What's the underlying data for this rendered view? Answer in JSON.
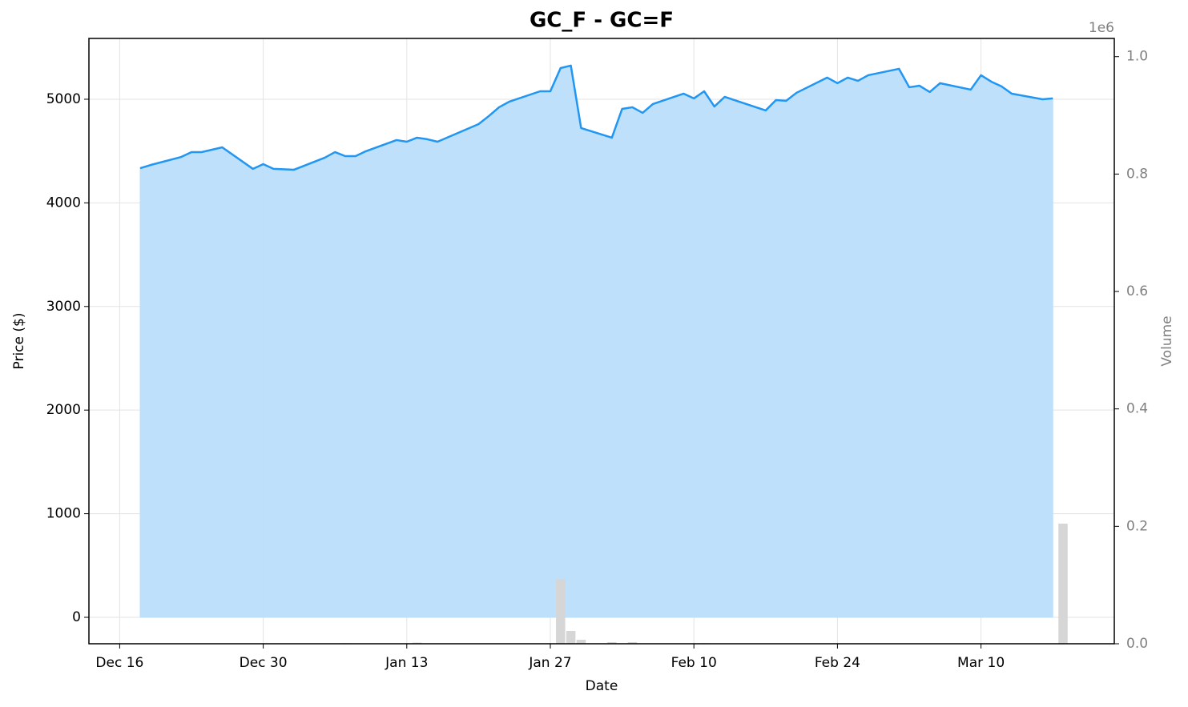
{
  "chart_data": {
    "type": "area",
    "title": "GC_F - GC=F",
    "x_label": "Date",
    "y_label": "Price ($)",
    "y2_label": "Volume",
    "y2_offset_label": "1e6",
    "color": "#2196f3",
    "fill_color": "#bbdefb",
    "grid": true,
    "x": [
      "Dec 18",
      "Dec 19",
      "Dec 22",
      "Dec 23",
      "Dec 24",
      "Dec 26",
      "Dec 29",
      "Dec 30",
      "Dec 31",
      "Jan 2",
      "Jan 5",
      "Jan 6",
      "Jan 7",
      "Jan 8",
      "Jan 9",
      "Jan 12",
      "Jan 13",
      "Jan 14",
      "Jan 15",
      "Jan 16",
      "Jan 20",
      "Jan 21",
      "Jan 22",
      "Jan 23",
      "Jan 26",
      "Jan 27",
      "Jan 28",
      "Jan 29",
      "Jan 30",
      "Feb 2",
      "Feb 3",
      "Feb 4",
      "Feb 5",
      "Feb 6",
      "Feb 9",
      "Feb 10",
      "Feb 11",
      "Feb 12",
      "Feb 13",
      "Feb 17",
      "Feb 18",
      "Feb 19",
      "Feb 20",
      "Feb 23",
      "Feb 24",
      "Feb 25",
      "Feb 26",
      "Feb 27",
      "Mar 2",
      "Mar 3",
      "Mar 4",
      "Mar 5",
      "Mar 6",
      "Mar 9",
      "Mar 10",
      "Mar 11",
      "Mar 12",
      "Mar 13",
      "Mar 16",
      "Mar 17"
    ],
    "values": [
      4335,
      4365,
      4443,
      4490,
      4490,
      4536,
      4328,
      4374,
      4328,
      4320,
      4436,
      4490,
      4451,
      4451,
      4498,
      4606,
      4590,
      4629,
      4614,
      4590,
      4760,
      4838,
      4923,
      4977,
      5077,
      5077,
      5301,
      5325,
      4722,
      4629,
      4907,
      4923,
      4869,
      4954,
      5054,
      5008,
      5077,
      4930,
      5023,
      4892,
      4992,
      4985,
      5062,
      5209,
      5155,
      5209,
      5178,
      5232,
      5294,
      5116,
      5131,
      5070,
      5155,
      5093,
      5232,
      5170,
      5124,
      5054,
      5000,
      5008
    ],
    "volume": {
      "axis": "y2",
      "color": "#d6d6d6",
      "x": [
        "Jan 7",
        "Jan 14",
        "Jan 28",
        "Jan 29",
        "Jan 30",
        "Feb 2",
        "Feb 4",
        "Feb 11",
        "Mar 18"
      ],
      "values": [
        1000,
        2000,
        110500,
        21800,
        6800,
        2700,
        2700,
        1000,
        204600
      ]
    },
    "xlim": [
      "Dec 13",
      "Mar 23"
    ],
    "xticks": [
      "Dec 16",
      "Dec 30",
      "Jan 13",
      "Jan 27",
      "Feb 10",
      "Feb 24",
      "Mar 10"
    ],
    "ylim": [
      -255,
      5587
    ],
    "yticks": [
      0,
      1000,
      2000,
      3000,
      4000,
      5000
    ],
    "y2lim": [
      0,
      1031000
    ],
    "y2ticks": [
      {
        "value": 0,
        "label": "0.0"
      },
      {
        "value": 200000,
        "label": "0.2"
      },
      {
        "value": 400000,
        "label": "0.4"
      },
      {
        "value": 600000,
        "label": "0.6"
      },
      {
        "value": 800000,
        "label": "0.8"
      },
      {
        "value": 1000000,
        "label": "1.0"
      }
    ]
  }
}
